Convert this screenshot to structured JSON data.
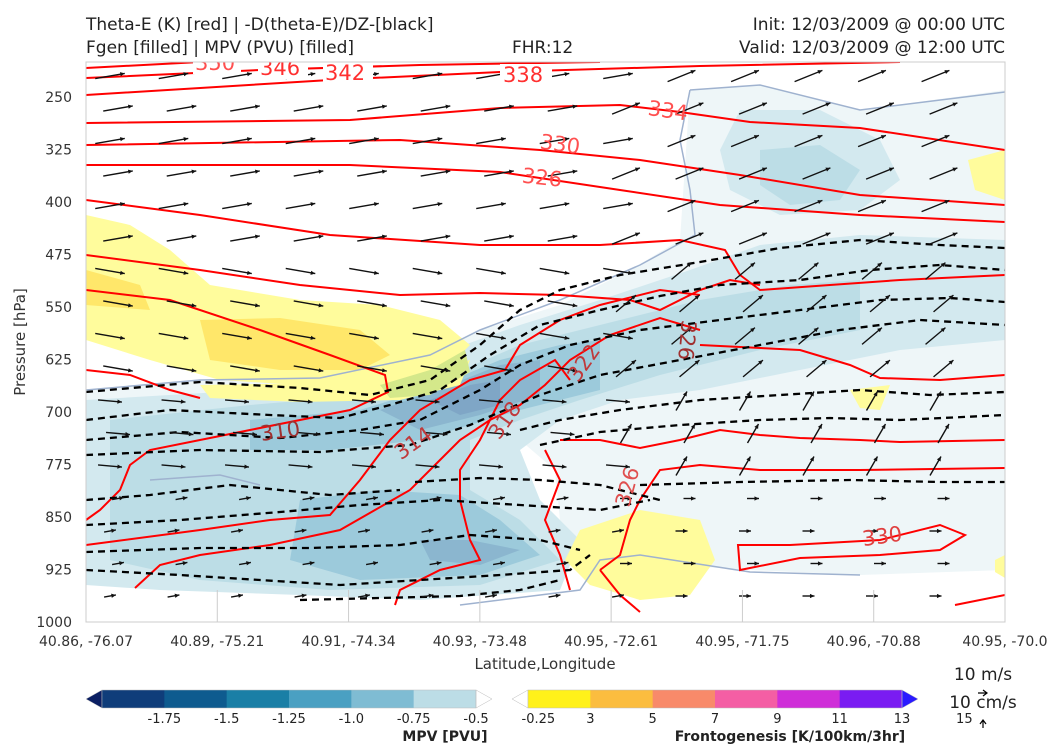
{
  "header": {
    "line1_left": "Theta-E (K) [red] | -D(theta-E)/DZ-[black]",
    "line2_left": "Fgen [filled] | MPV (PVU) [filled]",
    "fhr": "FHR:12",
    "init": "Init: 12/03/2009 @ 00:00 UTC",
    "valid": "Valid: 12/03/2009 @ 12:00 UTC"
  },
  "chart_data": {
    "type": "cross-section",
    "xlabel": "Latitude,Longitude",
    "ylabel": "Pressure [hPa]",
    "x_ticks": [
      "40.86, -76.07",
      "40.89, -75.21",
      "40.91, -74.34",
      "40.93, -73.48",
      "40.95, -72.61",
      "40.95, -71.75",
      "40.96, -70.88",
      "40.95, -70.0"
    ],
    "y_ticks": [
      250,
      325,
      400,
      475,
      550,
      625,
      700,
      775,
      850,
      925,
      1000
    ],
    "ylim": [
      1000,
      200
    ],
    "theta_e_labels": [
      "350",
      "346",
      "342",
      "338",
      "334",
      "330",
      "326",
      "322",
      "318",
      "314",
      "310",
      "326",
      "326",
      "330"
    ],
    "wind_reference": {
      "horizontal": "10 m/s",
      "vertical": "10 cm/s"
    },
    "colors": {
      "theta_e": "#ff0000",
      "stability": "#000000",
      "mpv_max": "#bcdde6",
      "mpv_min": "#0a1a5e",
      "fgen_low": "#fffc8c",
      "fgen_high": "#2a1aff"
    }
  },
  "colorbars": {
    "mpv": {
      "title": "MPV [PVU]",
      "ticks": [
        "-1.75",
        "-1.5",
        "-1.25",
        "-1.0",
        "-0.75",
        "-0.5",
        "-0.25"
      ],
      "colors": [
        "#0b1f63",
        "#0f3d7a",
        "#0e5b8f",
        "#1a7fa6",
        "#4aa0c2",
        "#7fbcd3",
        "#bcdde6",
        "#ffffff"
      ]
    },
    "fgen": {
      "title": "Frontogenesis [K/100km/3hr]",
      "ticks": [
        "3",
        "5",
        "7",
        "9",
        "11",
        "13",
        "15"
      ],
      "colors": [
        "#ffffff",
        "#fff11a",
        "#fbbd3f",
        "#f88a6a",
        "#f45ea4",
        "#cf2ed8",
        "#7a1cf2",
        "#2a1aff"
      ]
    }
  }
}
